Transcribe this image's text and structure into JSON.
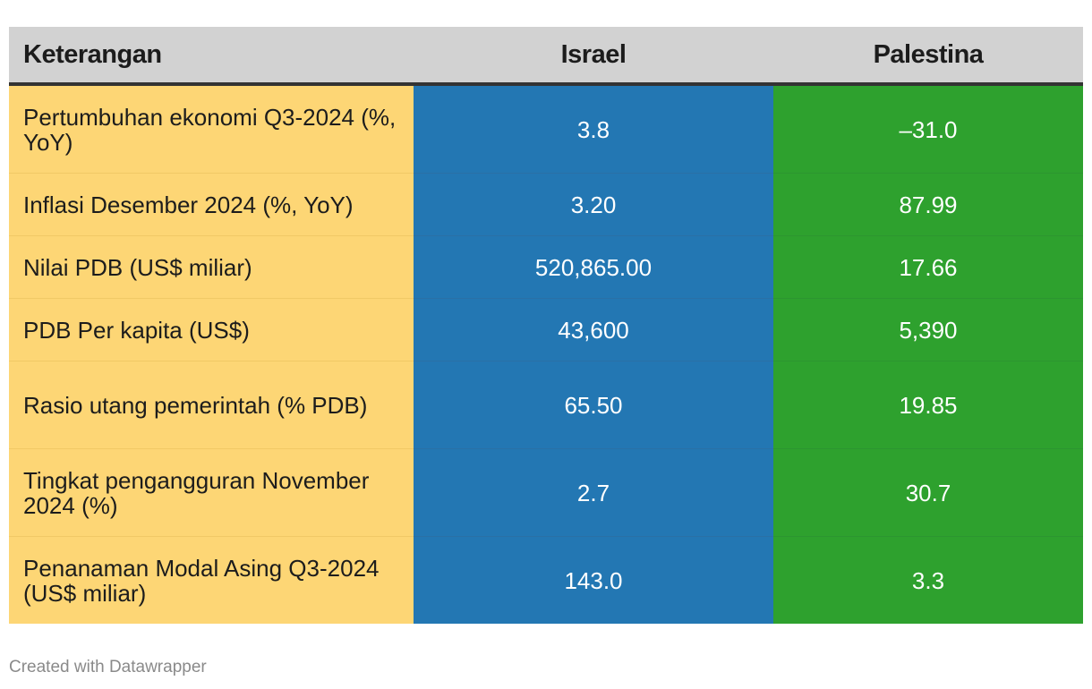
{
  "chart_data": {
    "type": "table",
    "columns": [
      "Keterangan",
      "Israel",
      "Palestina"
    ],
    "rows": [
      {
        "label": "Pertumbuhan ekonomi Q3-2024 (%, YoY)",
        "israel": "3.8",
        "palestina": "–31.0"
      },
      {
        "label": "Inflasi Desember 2024 (%, YoY)",
        "israel": "3.20",
        "palestina": "87.99"
      },
      {
        "label": "Nilai PDB (US$ miliar)",
        "israel": "520,865.00",
        "palestina": "17.66"
      },
      {
        "label": "PDB Per kapita (US$)",
        "israel": "43,600",
        "palestina": "5,390"
      },
      {
        "label": "Rasio utang pemerintah (% PDB)",
        "israel": "65.50",
        "palestina": "19.85"
      },
      {
        "label": "Tingkat pengangguran November 2024 (%)",
        "israel": "2.7",
        "palestina": "30.7"
      },
      {
        "label": "Penanaman Modal Asing Q3-2024 (US$ miliar)",
        "israel": "143.0",
        "palestina": "3.3"
      }
    ],
    "colors": {
      "header": "#d2d2d2",
      "label_column": "#fdd675",
      "israel_column": "#2377b3",
      "palestina_column": "#2ea12e"
    }
  },
  "footer": {
    "credit": "Created with Datawrapper"
  }
}
